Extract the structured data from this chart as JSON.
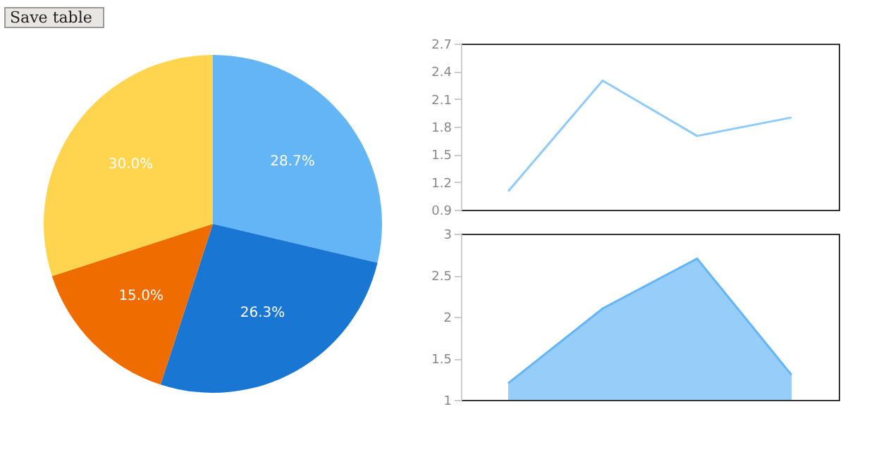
{
  "chart_data": [
    {
      "type": "pie",
      "categories": [
        null,
        null,
        null,
        null
      ],
      "values": [
        28.7,
        26.3,
        15.0,
        30.0
      ],
      "colors": [
        "#64b5f6",
        "#1976d2",
        "#ef6c00",
        "#ffd54f"
      ],
      "value_labels": [
        "28.7%",
        "26.3%",
        "15.0%",
        "30.0%"
      ],
      "annotations": [
        "Save table"
      ],
      "legend": false
    },
    {
      "type": "line",
      "categories": [
        null,
        null,
        null,
        null
      ],
      "series": [
        {
          "color": "#90caf9",
          "values": [
            1.1,
            2.3,
            1.7,
            1.9
          ]
        }
      ],
      "ylim": [
        0.9,
        2.7
      ],
      "yticks": [
        0.9,
        1.2,
        1.5,
        1.8,
        2.1,
        2.4,
        2.7
      ],
      "tick_labels": "y",
      "grid": false
    },
    {
      "type": "area",
      "categories": [
        null,
        null,
        null,
        null
      ],
      "series": [
        {
          "color": "#90caf9",
          "values": [
            1.2,
            2.1,
            2.7,
            1.3
          ]
        }
      ],
      "ylim": [
        1,
        3
      ],
      "yticks": [
        1,
        1.5,
        2,
        2.5,
        3
      ],
      "tick_labels": "y",
      "grid": false
    }
  ]
}
